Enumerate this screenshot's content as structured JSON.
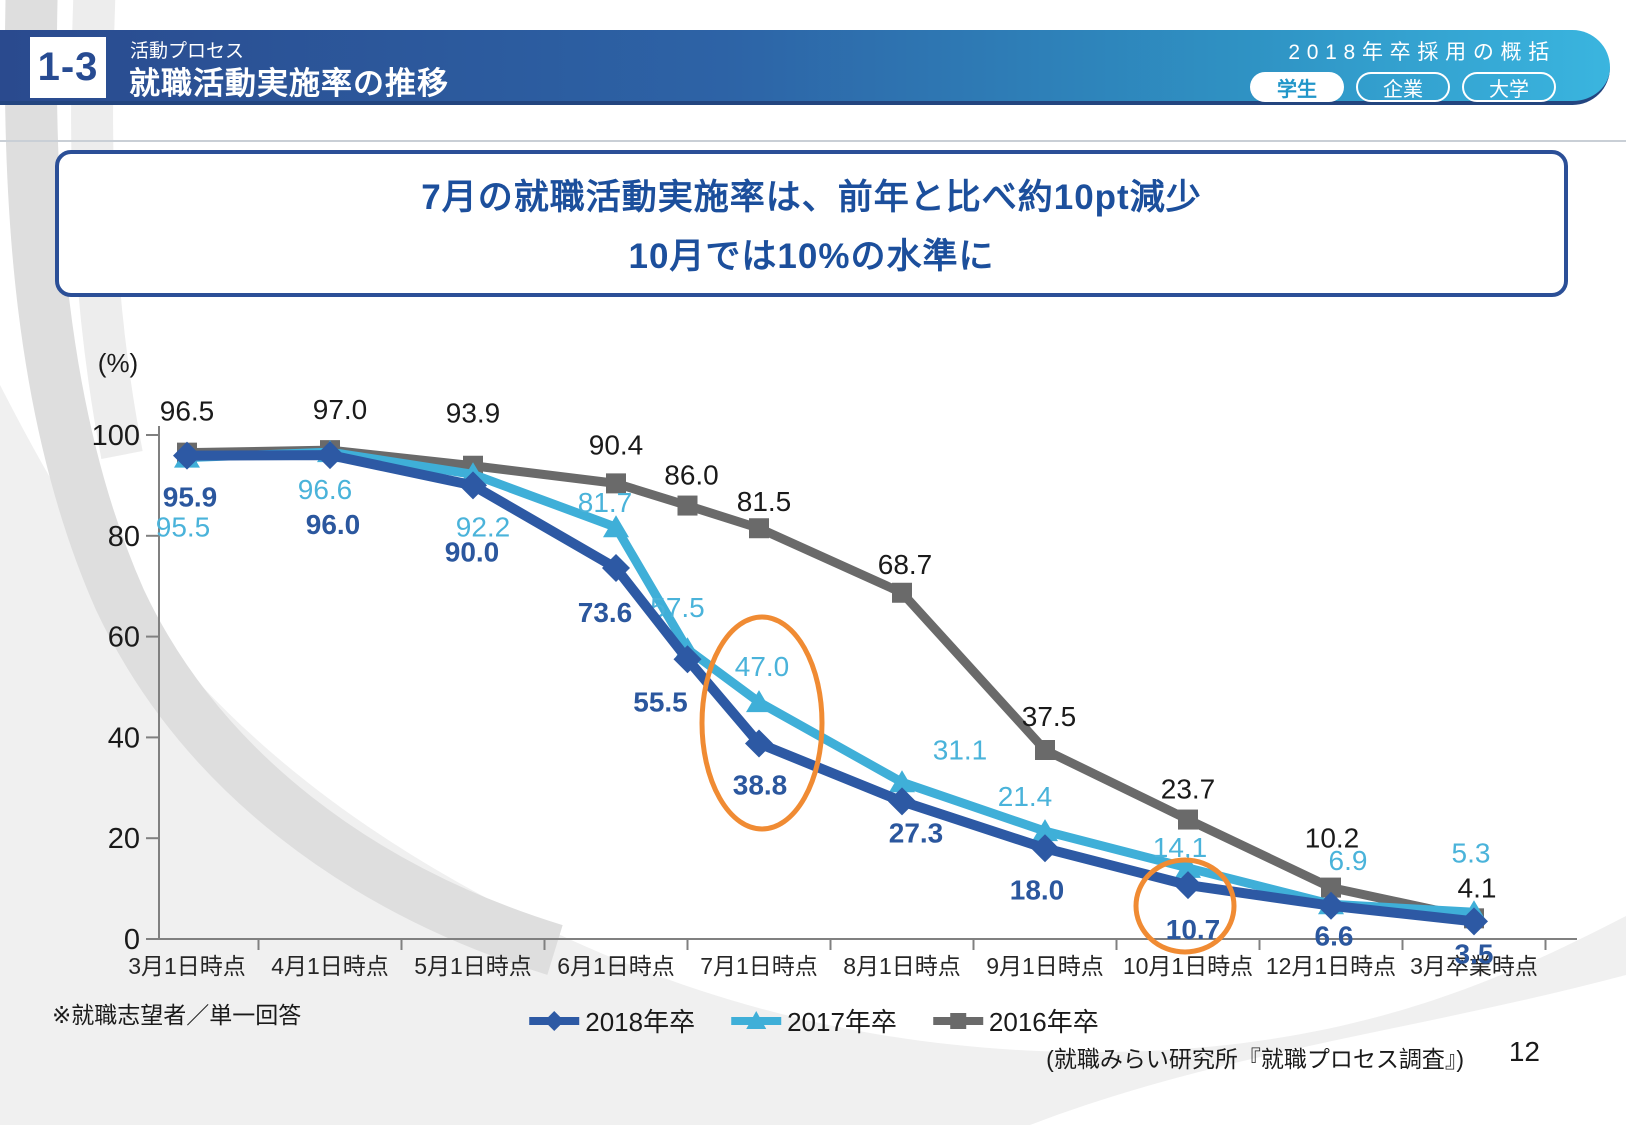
{
  "header": {
    "badge": "1-3",
    "category": "活動プロセス",
    "title": "就職活動実施率の推移",
    "right_title": "2018年卒採用の概括",
    "tabs": [
      {
        "label": "学生",
        "active": true
      },
      {
        "label": "企業",
        "active": false
      },
      {
        "label": "大学",
        "active": false
      }
    ]
  },
  "message": {
    "line1": "7月の就職活動実施率は、前年と比べ約10pt減少",
    "line2": "10月では10%の水準に"
  },
  "chart_data": {
    "type": "line",
    "unit_label": "(%)",
    "ylim": [
      0,
      100
    ],
    "yticks": [
      0,
      20,
      40,
      60,
      80,
      100
    ],
    "grid": false,
    "legend_position": "bottom-center",
    "categories": [
      "3月1日時点",
      "4月1日時点",
      "5月1日時点",
      "6月1日時点",
      "",
      "7月1日時点",
      "8月1日時点",
      "9月1日時点",
      "10月1日時点",
      "12月1日時点",
      "3月卒業時点"
    ],
    "series": [
      {
        "name": "2018年卒",
        "color": "#2D59A4",
        "label_color": "#2B579E",
        "label_bold": true,
        "marker": "diamond",
        "values": [
          95.9,
          96.0,
          90.0,
          73.6,
          55.5,
          38.8,
          27.3,
          18.0,
          10.7,
          6.6,
          3.5
        ]
      },
      {
        "name": "2017年卒",
        "color": "#3FAFD8",
        "label_color": "#4AB3DA",
        "label_bold": false,
        "marker": "triangle",
        "values": [
          95.5,
          96.6,
          92.2,
          81.7,
          57.5,
          47.0,
          31.1,
          21.4,
          14.1,
          6.9,
          5.3
        ]
      },
      {
        "name": "2016年卒",
        "color": "#6A6A6A",
        "label_color": "#1A1A1A",
        "label_bold": false,
        "marker": "square",
        "values": [
          96.5,
          97.0,
          93.9,
          90.4,
          86.0,
          81.5,
          68.7,
          37.5,
          23.7,
          10.2,
          4.1
        ]
      }
    ],
    "annotations": [
      {
        "type": "ellipse",
        "color": "#F08B33",
        "highlights": "7月1日時点の47.0と38.8"
      },
      {
        "type": "ellipse",
        "color": "#F08B33",
        "highlights": "10月1日時点の10.7"
      }
    ]
  },
  "footnote": "※就職志望者／単一回答",
  "source": "(就職みらい研究所『就職プロセス調査』)",
  "page_number": "12"
}
